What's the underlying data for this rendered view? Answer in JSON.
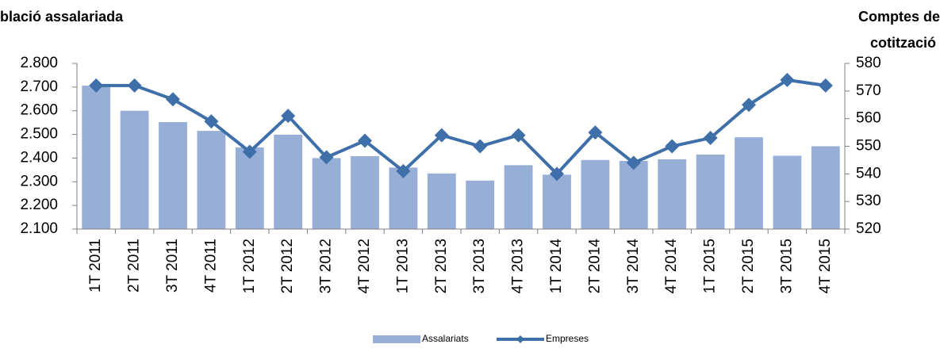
{
  "chart_data": {
    "type": "bar-line",
    "y_title": "blació assalariada",
    "y2_title_lines": [
      "Comptes de",
      "cotització"
    ],
    "categories": [
      "1T 2011",
      "2T 2011",
      "3T 2011",
      "4T 2011",
      "1T 2012",
      "2T 2012",
      "3T 2012",
      "4T 2012",
      "1T 2013",
      "2T 2013",
      "3T 2013",
      "4T 2013",
      "1T 2014",
      "2T 2014",
      "3T 2014",
      "4T 2014",
      "1T 2015",
      "2T 2015",
      "3T 2015",
      "4T 2015"
    ],
    "series": [
      {
        "name": "Assalariats",
        "type": "bar",
        "color": "#97aed6",
        "values": [
          2706,
          2600,
          2552,
          2515,
          2445,
          2499,
          2400,
          2408,
          2360,
          2335,
          2305,
          2370,
          2330,
          2392,
          2388,
          2395,
          2415,
          2488,
          2410,
          2450
        ]
      },
      {
        "name": "Empreses",
        "type": "line",
        "axis": "y2",
        "color": "#3f6fa9",
        "values": [
          572,
          572,
          567,
          559,
          548,
          561,
          546,
          552,
          541,
          554,
          550,
          554,
          540,
          555,
          544,
          550,
          553,
          565,
          574,
          572
        ]
      }
    ],
    "ylim": [
      2100,
      2800
    ],
    "yticks": [
      {
        "value": 2100,
        "label": "2.100"
      },
      {
        "value": 2200,
        "label": "2.200"
      },
      {
        "value": 2300,
        "label": "2.300"
      },
      {
        "value": 2400,
        "label": "2.400"
      },
      {
        "value": 2500,
        "label": "2.500"
      },
      {
        "value": 2600,
        "label": "2.600"
      },
      {
        "value": 2700,
        "label": "2.700"
      },
      {
        "value": 2800,
        "label": "2.800"
      }
    ],
    "y2lim": [
      520,
      580
    ],
    "y2ticks": [
      520,
      530,
      540,
      550,
      560,
      570,
      580
    ]
  }
}
